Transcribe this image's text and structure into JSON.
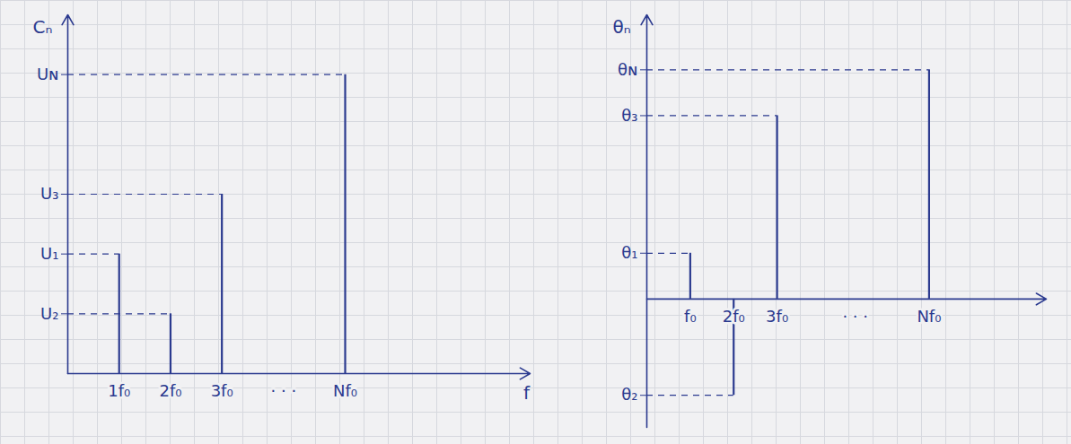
{
  "chart_data": [
    {
      "type": "stem",
      "ylabel": "Cₙ",
      "xlabel": "f",
      "x": [
        1,
        2,
        3,
        5.4
      ],
      "values": [
        2,
        1,
        3,
        5
      ],
      "color": "#2b3a8f",
      "xlim": [
        0,
        9
      ],
      "ylim": [
        0,
        6
      ],
      "xticks": [
        {
          "value": 1,
          "label": "1f₀"
        },
        {
          "value": 2,
          "label": "2f₀"
        },
        {
          "value": 3,
          "label": "3f₀"
        },
        {
          "value": 4.2,
          "label": "· · ·"
        },
        {
          "value": 5.4,
          "label": "Nf₀"
        }
      ],
      "yticks": [
        {
          "value": 1,
          "label": "U₂"
        },
        {
          "value": 2,
          "label": "U₁"
        },
        {
          "value": 3,
          "label": "U₃"
        },
        {
          "value": 5,
          "label": "Uɴ"
        }
      ],
      "grid": false
    },
    {
      "type": "stem",
      "ylabel": "θₙ",
      "x": [
        1,
        2,
        3,
        6.5
      ],
      "values": [
        1,
        -2.1,
        4,
        5
      ],
      "color": "#2b3a8f",
      "xlim": [
        0,
        9.2
      ],
      "ylim": [
        -2.8,
        6.2
      ],
      "xticks": [
        {
          "value": 1,
          "label": "f₀"
        },
        {
          "value": 2,
          "label": "2f₀"
        },
        {
          "value": 3,
          "label": "3f₀"
        },
        {
          "value": 4.8,
          "label": "· · ·"
        },
        {
          "value": 6.5,
          "label": "Nf₀"
        }
      ],
      "yticks": [
        {
          "value": -2.1,
          "label": "θ₂"
        },
        {
          "value": 1,
          "label": "θ₁"
        },
        {
          "value": 4,
          "label": "θ₃"
        },
        {
          "value": 5,
          "label": "θɴ"
        }
      ],
      "grid": false
    }
  ]
}
